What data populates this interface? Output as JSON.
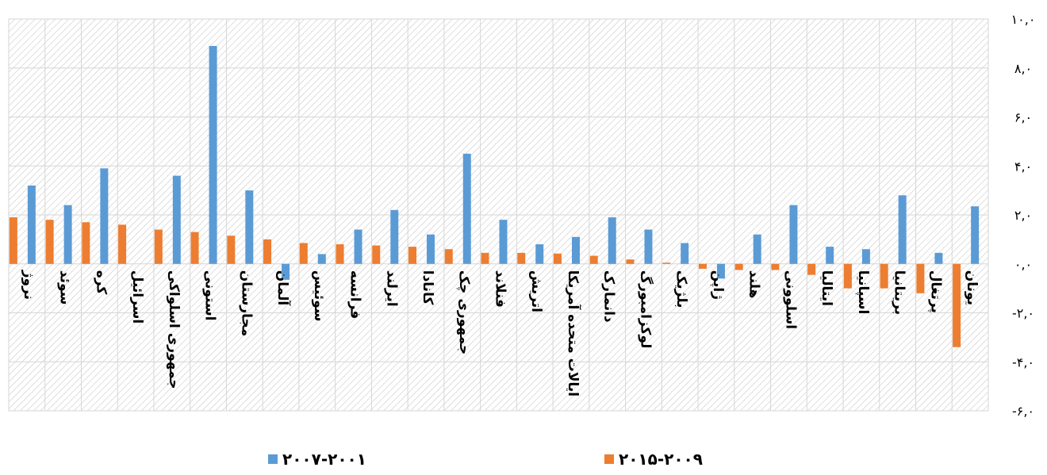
{
  "chart_data": {
    "type": "bar",
    "categories": [
      "نروژ",
      "سوئد",
      "کره",
      "اسرائیل",
      "جمهوری اسلواکی",
      "استونی",
      "مجارستان",
      "آلمان",
      "سوئیس",
      "فرانسه",
      "ایرلند",
      "کانادا",
      "جمهوری چک",
      "فنلاند",
      "اتریش",
      "ایالات متحده آمریکا",
      "دانمارک",
      "لوکزامبورگ",
      "بلژیک",
      "ژاپن",
      "هلند",
      "اسلوونی",
      "ایتالیا",
      "اسپانیا",
      "بریتانیا",
      "پرتغال",
      "یونان"
    ],
    "series": [
      {
        "name": "۲۰۱۵-۲۰۰۹",
        "color": "#ED7D31",
        "values": [
          1.9,
          1.8,
          1.7,
          1.6,
          1.4,
          1.3,
          1.15,
          1.0,
          0.85,
          0.8,
          0.75,
          0.7,
          0.6,
          0.45,
          0.45,
          0.42,
          0.33,
          0.18,
          0.05,
          -0.2,
          -0.25,
          -0.25,
          -0.45,
          -1.0,
          -1.0,
          -1.2,
          -3.4
        ]
      },
      {
        "name": "۲۰۰۷-۲۰۰۱",
        "color": "#5B9BD5",
        "values": [
          3.2,
          2.4,
          3.9,
          0.0,
          3.6,
          8.9,
          3.0,
          -0.65,
          0.4,
          1.4,
          2.2,
          1.2,
          4.5,
          1.8,
          0.8,
          1.1,
          1.9,
          1.4,
          0.85,
          -0.6,
          1.2,
          2.4,
          0.7,
          0.6,
          2.8,
          0.45,
          2.35
        ]
      }
    ],
    "ylim": [
      -6,
      10
    ],
    "yticks": [
      10,
      8,
      6,
      4,
      2,
      0,
      -2,
      -4,
      -6
    ],
    "ytick_labels": [
      "۱۰,۰",
      "۸,۰",
      "۶,۰",
      "۴,۰",
      "۲,۰",
      "۰,۰",
      "-۲,۰",
      "-۴,۰",
      "-۶,۰"
    ],
    "grid": true,
    "legend_position": "bottom"
  },
  "legend": {
    "orange_label": "۲۰۱۵-۲۰۰۹",
    "blue_label": "۲۰۰۷-۲۰۰۱",
    "orange_color": "#ED7D31",
    "blue_color": "#5B9BD5"
  }
}
